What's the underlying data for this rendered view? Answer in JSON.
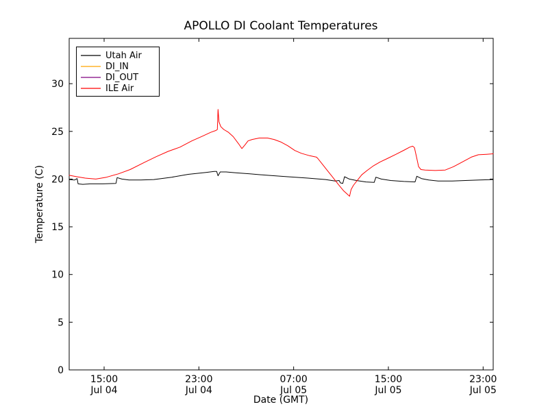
{
  "figure": {
    "background": "#ffffff",
    "axes_edge_color": "#000000"
  },
  "chart_data": {
    "type": "line",
    "title": "APOLLO DI Coolant Temperatures",
    "xlabel": "Date (GMT)",
    "ylabel": "Temperature (C)",
    "grid": false,
    "legend_position": "upper left",
    "x_unit": "hours since Jul 04 00:00 GMT",
    "xlim": [
      12.05,
      47.85
    ],
    "ylim": [
      0,
      34.75
    ],
    "y_ticks": [
      {
        "value": 0,
        "label": "0"
      },
      {
        "value": 5,
        "label": "5"
      },
      {
        "value": 10,
        "label": "10"
      },
      {
        "value": 15,
        "label": "15"
      },
      {
        "value": 20,
        "label": "20"
      },
      {
        "value": 25,
        "label": "25"
      },
      {
        "value": 30,
        "label": "30"
      }
    ],
    "x_ticks": [
      {
        "value": 15,
        "line1": "15:00",
        "line2": "Jul 04"
      },
      {
        "value": 23,
        "line1": "23:00",
        "line2": "Jul 04"
      },
      {
        "value": 31,
        "line1": "07:00",
        "line2": "Jul 05"
      },
      {
        "value": 39,
        "line1": "15:00",
        "line2": "Jul 05"
      },
      {
        "value": 47,
        "line1": "23:00",
        "line2": "Jul 05"
      }
    ],
    "series": [
      {
        "name": "Utah Air",
        "color": "#000000",
        "points": [
          [
            12.05,
            19.95
          ],
          [
            12.5,
            19.9
          ],
          [
            12.72,
            20.05
          ],
          [
            12.8,
            19.5
          ],
          [
            13.2,
            19.45
          ],
          [
            13.8,
            19.5
          ],
          [
            14.9,
            19.5
          ],
          [
            16.0,
            19.55
          ],
          [
            16.1,
            20.15
          ],
          [
            16.5,
            20.0
          ],
          [
            17.1,
            19.9
          ],
          [
            18.1,
            19.9
          ],
          [
            19.2,
            19.95
          ],
          [
            20.7,
            20.2
          ],
          [
            22.1,
            20.5
          ],
          [
            23.6,
            20.7
          ],
          [
            24.3,
            20.8
          ],
          [
            24.5,
            20.8
          ],
          [
            24.62,
            20.35
          ],
          [
            24.8,
            20.75
          ],
          [
            25.3,
            20.75
          ],
          [
            26.2,
            20.65
          ],
          [
            27.3,
            20.55
          ],
          [
            28.8,
            20.4
          ],
          [
            30.5,
            20.25
          ],
          [
            32.2,
            20.1
          ],
          [
            33.7,
            19.95
          ],
          [
            34.5,
            19.8
          ],
          [
            34.84,
            19.85
          ],
          [
            34.95,
            19.6
          ],
          [
            35.15,
            19.55
          ],
          [
            35.3,
            20.25
          ],
          [
            35.7,
            20.0
          ],
          [
            36.3,
            19.85
          ],
          [
            37.1,
            19.7
          ],
          [
            37.8,
            19.65
          ],
          [
            37.95,
            20.2
          ],
          [
            38.4,
            20.0
          ],
          [
            39.2,
            19.85
          ],
          [
            40.3,
            19.75
          ],
          [
            41.25,
            19.7
          ],
          [
            41.4,
            20.3
          ],
          [
            41.8,
            20.05
          ],
          [
            42.4,
            19.9
          ],
          [
            43.2,
            19.8
          ],
          [
            44.4,
            19.8
          ],
          [
            45.5,
            19.85
          ],
          [
            46.7,
            19.9
          ],
          [
            47.85,
            19.95
          ]
        ]
      },
      {
        "name": "DI_IN",
        "color": "#ffa500",
        "points": []
      },
      {
        "name": "DI_OUT",
        "color": "#800080",
        "points": []
      },
      {
        "name": "ILE Air",
        "color": "#ff0000",
        "points": [
          [
            12.05,
            20.4
          ],
          [
            12.7,
            20.25
          ],
          [
            13.4,
            20.1
          ],
          [
            14.3,
            20.0
          ],
          [
            15.2,
            20.2
          ],
          [
            16.2,
            20.55
          ],
          [
            17.2,
            21.0
          ],
          [
            18.4,
            21.75
          ],
          [
            19.4,
            22.35
          ],
          [
            20.4,
            22.9
          ],
          [
            21.4,
            23.35
          ],
          [
            22.4,
            24.0
          ],
          [
            23.3,
            24.5
          ],
          [
            24.0,
            24.9
          ],
          [
            24.45,
            25.1
          ],
          [
            24.56,
            25.2
          ],
          [
            24.62,
            27.3
          ],
          [
            24.7,
            26.0
          ],
          [
            24.85,
            25.5
          ],
          [
            25.1,
            25.2
          ],
          [
            25.5,
            24.9
          ],
          [
            25.9,
            24.45
          ],
          [
            26.35,
            23.7
          ],
          [
            26.63,
            23.2
          ],
          [
            26.9,
            23.6
          ],
          [
            27.15,
            24.0
          ],
          [
            27.5,
            24.15
          ],
          [
            28.1,
            24.3
          ],
          [
            28.8,
            24.3
          ],
          [
            29.35,
            24.15
          ],
          [
            29.9,
            23.9
          ],
          [
            30.5,
            23.5
          ],
          [
            31.1,
            23.0
          ],
          [
            31.65,
            22.7
          ],
          [
            32.35,
            22.45
          ],
          [
            32.93,
            22.3
          ],
          [
            33.05,
            22.15
          ],
          [
            33.4,
            21.6
          ],
          [
            33.85,
            20.9
          ],
          [
            34.3,
            20.2
          ],
          [
            34.8,
            19.4
          ],
          [
            35.2,
            18.8
          ],
          [
            35.5,
            18.45
          ],
          [
            35.72,
            18.2
          ],
          [
            35.85,
            18.9
          ],
          [
            36.05,
            19.35
          ],
          [
            36.4,
            19.9
          ],
          [
            36.75,
            20.45
          ],
          [
            37.2,
            20.9
          ],
          [
            37.75,
            21.4
          ],
          [
            38.3,
            21.8
          ],
          [
            38.9,
            22.15
          ],
          [
            39.65,
            22.6
          ],
          [
            40.35,
            23.05
          ],
          [
            40.8,
            23.35
          ],
          [
            41.05,
            23.45
          ],
          [
            41.2,
            23.3
          ],
          [
            41.38,
            22.3
          ],
          [
            41.55,
            21.3
          ],
          [
            41.75,
            21.0
          ],
          [
            42.1,
            20.95
          ],
          [
            42.95,
            20.9
          ],
          [
            43.8,
            20.95
          ],
          [
            44.5,
            21.3
          ],
          [
            45.25,
            21.8
          ],
          [
            46.0,
            22.3
          ],
          [
            46.6,
            22.55
          ],
          [
            47.3,
            22.6
          ],
          [
            47.85,
            22.65
          ]
        ]
      }
    ]
  }
}
